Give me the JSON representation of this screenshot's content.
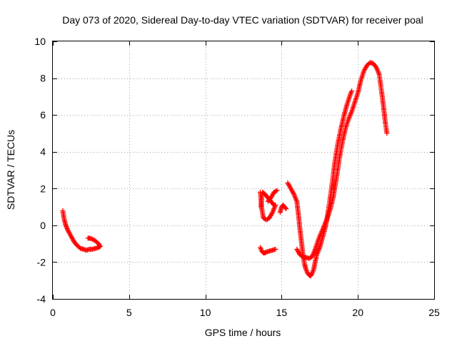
{
  "chart_data": {
    "type": "scatter",
    "title": "Day 073 of 2020, Sidereal Day-to-day VTEC variation (SDTVAR) for receiver poal",
    "xlabel": "GPS time / hours",
    "ylabel": "SDTVAR / TECUs",
    "xlim": [
      0,
      25
    ],
    "ylim": [
      -4,
      10
    ],
    "xticks": [
      0,
      5,
      10,
      15,
      20,
      25
    ],
    "yticks": [
      -4,
      -2,
      0,
      2,
      4,
      6,
      8,
      10
    ],
    "xtick_labels": [
      "0",
      "5",
      "10",
      "15",
      "20",
      "25"
    ],
    "ytick_labels": [
      "-4",
      "-2",
      "0",
      "2",
      "4",
      "6",
      "8",
      "10"
    ],
    "grid": true,
    "marker": "+",
    "series": [
      {
        "name": "SDTVAR",
        "color": "#ff0000",
        "segments": [
          {
            "x": [
              0.65,
              0.75,
              0.85,
              1.0,
              1.2,
              1.4,
              1.6,
              1.8,
              2.0,
              2.2,
              2.4,
              2.6,
              2.8,
              3.0,
              3.1,
              3.0,
              2.8,
              2.6,
              2.4,
              2.3
            ],
            "y": [
              0.8,
              0.3,
              0.0,
              -0.3,
              -0.6,
              -0.9,
              -1.1,
              -1.25,
              -1.3,
              -1.35,
              -1.3,
              -1.3,
              -1.25,
              -1.2,
              -1.15,
              -1.0,
              -0.85,
              -0.75,
              -0.7,
              -0.7
            ]
          },
          {
            "x": [
              13.6,
              13.7,
              13.8,
              13.9,
              14.0,
              14.2,
              14.4,
              14.6
            ],
            "y": [
              -1.2,
              -1.4,
              -1.5,
              -1.5,
              -1.45,
              -1.4,
              -1.35,
              -1.3
            ]
          },
          {
            "x": [
              13.6,
              13.7,
              13.8,
              14.0,
              14.2,
              14.4,
              14.6,
              14.5,
              14.3,
              14.1,
              13.9,
              13.75,
              13.7,
              13.65
            ],
            "y": [
              1.8,
              0.9,
              0.4,
              0.3,
              0.4,
              0.7,
              1.1,
              1.1,
              1.3,
              1.5,
              1.7,
              1.8,
              1.5,
              1.0
            ]
          },
          {
            "x": [
              14.1,
              14.3,
              14.5,
              14.7
            ],
            "y": [
              1.3,
              1.5,
              1.8,
              1.9
            ]
          },
          {
            "x": [
              14.9,
              15.0,
              15.1,
              15.2,
              15.3
            ],
            "y": [
              0.7,
              1.0,
              1.1,
              1.0,
              0.9
            ]
          },
          {
            "x": [
              15.4,
              15.6,
              15.8,
              16.0,
              16.1,
              16.2,
              16.3,
              16.4,
              16.5,
              16.6,
              16.7,
              16.8,
              16.9,
              17.0,
              17.1,
              17.2,
              17.3,
              17.5,
              17.7,
              17.9,
              18.1,
              18.3,
              18.5,
              18.7,
              18.9,
              19.1,
              19.3,
              19.5,
              19.6
            ],
            "y": [
              2.3,
              2.0,
              1.7,
              1.3,
              0.6,
              -0.2,
              -0.9,
              -1.6,
              -2.1,
              -2.4,
              -2.6,
              -2.7,
              -2.75,
              -2.6,
              -2.4,
              -2.0,
              -1.6,
              -1.2,
              -0.6,
              0.0,
              1.0,
              2.2,
              3.5,
              4.5,
              5.3,
              6.0,
              6.6,
              7.1,
              7.3
            ]
          },
          {
            "x": [
              16.0,
              16.2,
              16.4,
              16.6,
              16.8,
              17.0,
              17.2,
              17.4,
              17.6,
              17.8,
              18.0,
              18.2,
              18.4,
              18.6,
              18.8,
              19.0,
              19.2,
              19.4,
              19.6,
              19.8,
              20.0,
              20.2,
              20.4,
              20.6,
              20.8,
              21.0,
              21.2,
              21.4,
              21.5,
              21.6,
              21.7,
              21.8,
              21.9
            ],
            "y": [
              -1.3,
              -1.6,
              -1.7,
              -1.75,
              -1.8,
              -1.7,
              -1.3,
              -0.8,
              -0.4,
              0.0,
              0.4,
              0.9,
              1.6,
              2.6,
              3.7,
              4.6,
              5.3,
              5.8,
              6.2,
              6.7,
              7.2,
              7.9,
              8.4,
              8.7,
              8.85,
              8.8,
              8.6,
              8.2,
              7.6,
              7.0,
              6.3,
              5.6,
              5.0
            ]
          }
        ]
      }
    ]
  }
}
